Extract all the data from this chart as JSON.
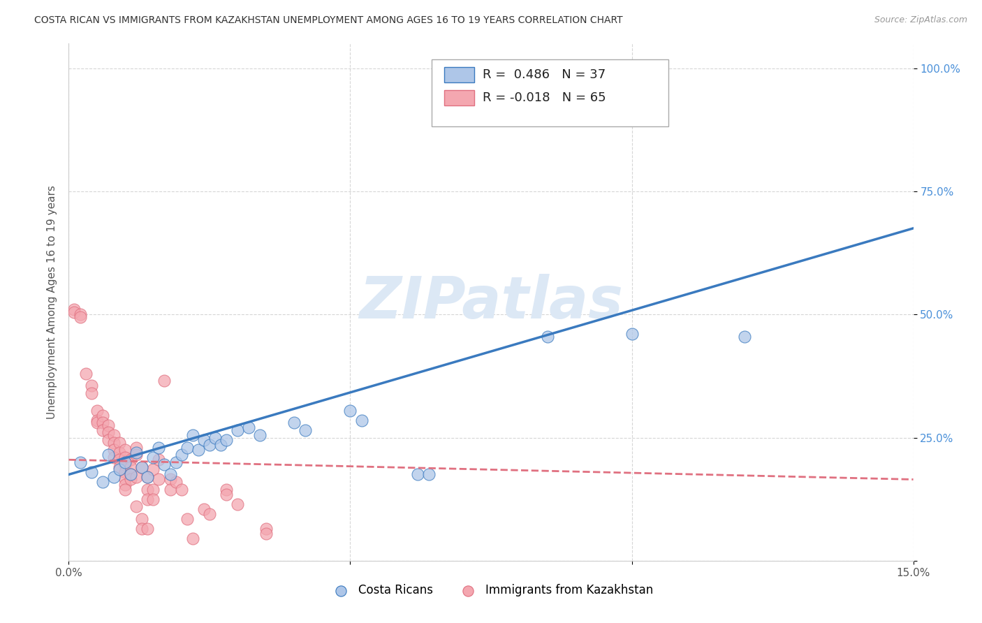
{
  "title": "COSTA RICAN VS IMMIGRANTS FROM KAZAKHSTAN UNEMPLOYMENT AMONG AGES 16 TO 19 YEARS CORRELATION CHART",
  "source": "Source: ZipAtlas.com",
  "ylabel": "Unemployment Among Ages 16 to 19 years",
  "xlim": [
    0.0,
    0.15
  ],
  "ylim": [
    0.0,
    1.05
  ],
  "xticks": [
    0.0,
    0.05,
    0.1,
    0.15
  ],
  "xtick_labels": [
    "0.0%",
    "",
    "",
    "15.0%"
  ],
  "yticks": [
    0.0,
    0.25,
    0.5,
    0.75,
    1.0
  ],
  "ytick_labels": [
    "",
    "25.0%",
    "50.0%",
    "75.0%",
    "100.0%"
  ],
  "blue_R": 0.486,
  "blue_N": 37,
  "pink_R": -0.018,
  "pink_N": 65,
  "blue_color": "#aec6e8",
  "blue_line_color": "#3a7abf",
  "pink_color": "#f4a7b0",
  "pink_line_color": "#e07080",
  "watermark": "ZIPatlas",
  "watermark_color": "#dce8f5",
  "legend_label_blue": "Costa Ricans",
  "legend_label_pink": "Immigrants from Kazakhstan",
  "background_color": "#ffffff",
  "grid_color": "#cccccc",
  "blue_dots": [
    [
      0.002,
      0.2
    ],
    [
      0.004,
      0.18
    ],
    [
      0.006,
      0.16
    ],
    [
      0.007,
      0.215
    ],
    [
      0.008,
      0.17
    ],
    [
      0.009,
      0.185
    ],
    [
      0.01,
      0.2
    ],
    [
      0.011,
      0.175
    ],
    [
      0.012,
      0.22
    ],
    [
      0.013,
      0.19
    ],
    [
      0.014,
      0.17
    ],
    [
      0.015,
      0.21
    ],
    [
      0.016,
      0.23
    ],
    [
      0.017,
      0.195
    ],
    [
      0.018,
      0.175
    ],
    [
      0.019,
      0.2
    ],
    [
      0.02,
      0.215
    ],
    [
      0.021,
      0.23
    ],
    [
      0.022,
      0.255
    ],
    [
      0.023,
      0.225
    ],
    [
      0.024,
      0.245
    ],
    [
      0.025,
      0.235
    ],
    [
      0.026,
      0.25
    ],
    [
      0.027,
      0.235
    ],
    [
      0.028,
      0.245
    ],
    [
      0.03,
      0.265
    ],
    [
      0.032,
      0.27
    ],
    [
      0.034,
      0.255
    ],
    [
      0.04,
      0.28
    ],
    [
      0.042,
      0.265
    ],
    [
      0.05,
      0.305
    ],
    [
      0.052,
      0.285
    ],
    [
      0.062,
      0.175
    ],
    [
      0.064,
      0.175
    ],
    [
      0.085,
      0.455
    ],
    [
      0.1,
      0.46
    ],
    [
      0.12,
      0.455
    ]
  ],
  "pink_dots": [
    [
      0.001,
      0.51
    ],
    [
      0.001,
      0.505
    ],
    [
      0.002,
      0.5
    ],
    [
      0.002,
      0.495
    ],
    [
      0.003,
      0.38
    ],
    [
      0.004,
      0.355
    ],
    [
      0.004,
      0.34
    ],
    [
      0.005,
      0.305
    ],
    [
      0.005,
      0.285
    ],
    [
      0.005,
      0.28
    ],
    [
      0.006,
      0.295
    ],
    [
      0.006,
      0.28
    ],
    [
      0.006,
      0.265
    ],
    [
      0.007,
      0.275
    ],
    [
      0.007,
      0.26
    ],
    [
      0.007,
      0.245
    ],
    [
      0.008,
      0.255
    ],
    [
      0.008,
      0.24
    ],
    [
      0.008,
      0.225
    ],
    [
      0.008,
      0.21
    ],
    [
      0.009,
      0.24
    ],
    [
      0.009,
      0.22
    ],
    [
      0.009,
      0.205
    ],
    [
      0.009,
      0.19
    ],
    [
      0.01,
      0.225
    ],
    [
      0.01,
      0.21
    ],
    [
      0.01,
      0.195
    ],
    [
      0.01,
      0.18
    ],
    [
      0.01,
      0.165
    ],
    [
      0.01,
      0.155
    ],
    [
      0.01,
      0.145
    ],
    [
      0.011,
      0.205
    ],
    [
      0.011,
      0.19
    ],
    [
      0.011,
      0.175
    ],
    [
      0.011,
      0.165
    ],
    [
      0.012,
      0.23
    ],
    [
      0.012,
      0.215
    ],
    [
      0.012,
      0.17
    ],
    [
      0.012,
      0.11
    ],
    [
      0.013,
      0.19
    ],
    [
      0.013,
      0.085
    ],
    [
      0.013,
      0.065
    ],
    [
      0.014,
      0.17
    ],
    [
      0.014,
      0.145
    ],
    [
      0.014,
      0.125
    ],
    [
      0.014,
      0.065
    ],
    [
      0.015,
      0.185
    ],
    [
      0.015,
      0.145
    ],
    [
      0.015,
      0.125
    ],
    [
      0.016,
      0.205
    ],
    [
      0.016,
      0.165
    ],
    [
      0.017,
      0.365
    ],
    [
      0.018,
      0.165
    ],
    [
      0.018,
      0.145
    ],
    [
      0.019,
      0.16
    ],
    [
      0.02,
      0.145
    ],
    [
      0.021,
      0.085
    ],
    [
      0.022,
      0.045
    ],
    [
      0.024,
      0.105
    ],
    [
      0.025,
      0.095
    ],
    [
      0.028,
      0.145
    ],
    [
      0.028,
      0.135
    ],
    [
      0.03,
      0.115
    ],
    [
      0.035,
      0.065
    ],
    [
      0.035,
      0.055
    ]
  ],
  "blue_trendline_x": [
    0.0,
    0.15
  ],
  "blue_trendline_y": [
    0.175,
    0.675
  ],
  "pink_trendline_x": [
    0.0,
    0.15
  ],
  "pink_trendline_y": [
    0.205,
    0.165
  ]
}
